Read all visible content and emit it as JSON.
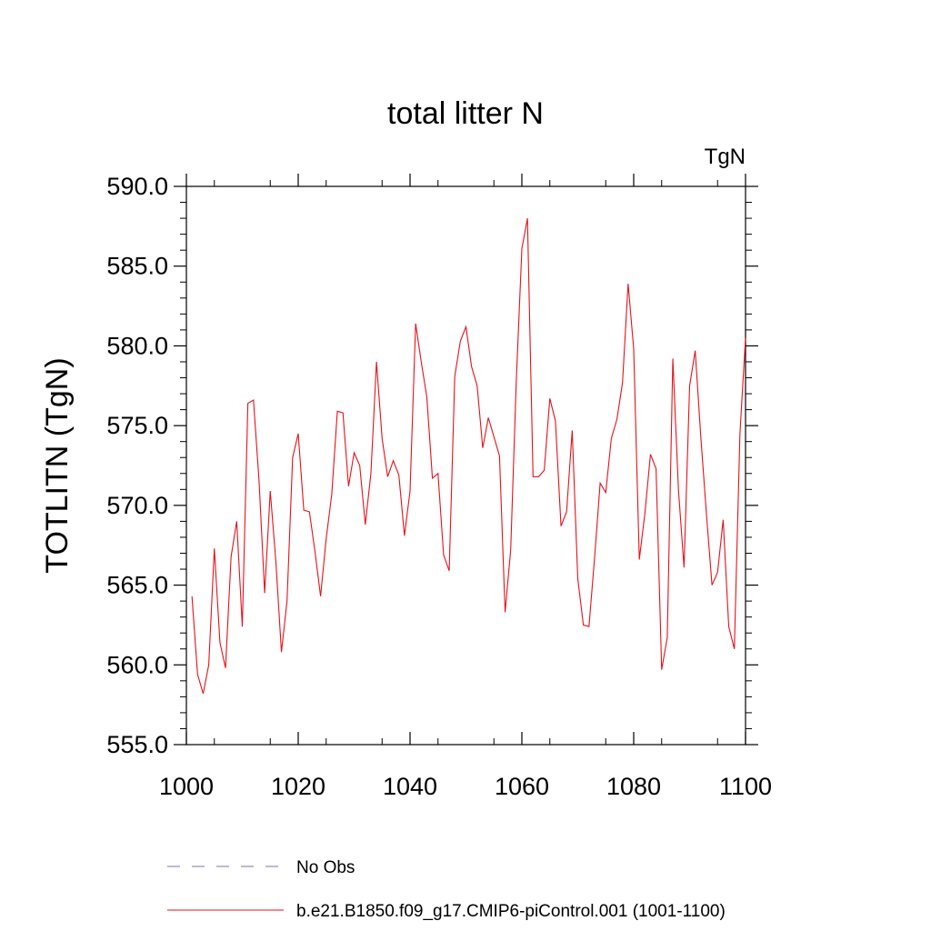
{
  "chart_data": {
    "type": "line",
    "title": "total litter N",
    "units": "TgN",
    "ylabel": "TOTLITN  (TgN)",
    "xlabel": "",
    "xlim": [
      1000,
      1100
    ],
    "ylim": [
      555,
      590
    ],
    "xticks": [
      1000,
      1020,
      1040,
      1060,
      1080,
      1100
    ],
    "yticks": [
      555,
      560,
      565,
      570,
      575,
      580,
      585,
      590
    ],
    "ytick_labels": [
      "555.0",
      "560.0",
      "565.0",
      "570.0",
      "575.0",
      "580.0",
      "585.0",
      "590.0"
    ],
    "grid": false,
    "legend_position": "bottom",
    "series": [
      {
        "name": "No Obs",
        "color": "#7b73b8",
        "dash": "dashed",
        "values": []
      },
      {
        "name": "b.e21.B1850.f09_g17.CMIP6-piControl.001 (1001-1100)",
        "color": "#e8101a",
        "dash": "solid",
        "x": [
          1001,
          1002,
          1003,
          1004,
          1005,
          1006,
          1007,
          1008,
          1009,
          1010,
          1011,
          1012,
          1013,
          1014,
          1015,
          1016,
          1017,
          1018,
          1019,
          1020,
          1021,
          1022,
          1023,
          1024,
          1025,
          1026,
          1027,
          1028,
          1029,
          1030,
          1031,
          1032,
          1033,
          1034,
          1035,
          1036,
          1037,
          1038,
          1039,
          1040,
          1041,
          1042,
          1043,
          1044,
          1045,
          1046,
          1047,
          1048,
          1049,
          1050,
          1051,
          1052,
          1053,
          1054,
          1055,
          1056,
          1057,
          1058,
          1059,
          1060,
          1061,
          1062,
          1063,
          1064,
          1065,
          1066,
          1067,
          1068,
          1069,
          1070,
          1071,
          1072,
          1073,
          1074,
          1075,
          1076,
          1077,
          1078,
          1079,
          1080,
          1081,
          1082,
          1083,
          1084,
          1085,
          1086,
          1087,
          1088,
          1089,
          1090,
          1091,
          1092,
          1093,
          1094,
          1095,
          1096,
          1097,
          1098,
          1099,
          1100
        ],
        "values": [
          564.3,
          559.4,
          558.2,
          560.0,
          567.3,
          561.4,
          559.8,
          566.8,
          569.0,
          562.4,
          576.4,
          576.6,
          571.5,
          564.5,
          570.9,
          566.5,
          560.8,
          564.0,
          573.0,
          574.5,
          569.7,
          569.6,
          567.1,
          564.3,
          567.9,
          570.7,
          575.9,
          575.8,
          571.2,
          573.3,
          572.5,
          568.8,
          572.0,
          579.0,
          574.2,
          571.8,
          572.8,
          571.9,
          568.1,
          570.9,
          581.4,
          579.0,
          576.8,
          571.7,
          572.0,
          566.9,
          565.9,
          578.1,
          580.3,
          581.2,
          578.7,
          577.5,
          573.6,
          575.5,
          574.3,
          573.1,
          563.3,
          567.2,
          577.8,
          586.1,
          588.0,
          571.8,
          571.8,
          572.2,
          576.7,
          575.3,
          568.7,
          569.6,
          574.7,
          565.4,
          562.5,
          562.4,
          566.7,
          571.4,
          570.8,
          574.2,
          575.4,
          577.7,
          583.9,
          579.8,
          566.6,
          569.5,
          573.2,
          572.3,
          559.7,
          561.7,
          579.2,
          571.0,
          566.1,
          577.5,
          579.7,
          574.3,
          569.5,
          565.0,
          565.8,
          569.1,
          562.4,
          561.0,
          574.5,
          580.5
        ]
      }
    ]
  }
}
